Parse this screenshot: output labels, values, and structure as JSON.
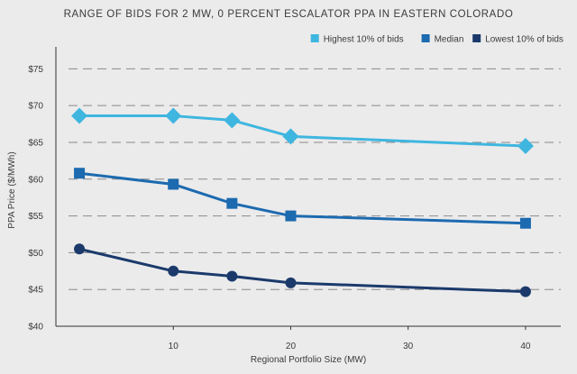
{
  "chart_data": {
    "type": "line",
    "title": "RANGE OF BIDS FOR 2 MW, 0 PERCENT ESCALATOR PPA IN EASTERN COLORADO",
    "xlabel": "Regional Portfolio Size (MW)",
    "ylabel": "PPA Price ($/MWh)",
    "xlim": [
      0,
      43
    ],
    "ylim": [
      40,
      77
    ],
    "x_ticks": [
      10,
      20,
      30,
      40
    ],
    "x_tick_labels": [
      "10",
      "20",
      "30",
      "40"
    ],
    "y_ticks": [
      40,
      45,
      50,
      55,
      60,
      65,
      70,
      75
    ],
    "y_tick_labels": [
      "$40",
      "$45",
      "$50",
      "$55",
      "$60",
      "$65",
      "$70",
      "$75"
    ],
    "grid": "horizontal dashed",
    "legend_position": "top-right",
    "series": [
      {
        "name": "Highest 10% of bids",
        "color": "#3fb6df",
        "marker": "diamond",
        "x": [
          2,
          10,
          15,
          20,
          40
        ],
        "values": [
          68.6,
          68.6,
          68.0,
          65.8,
          64.5
        ]
      },
      {
        "name": "Median",
        "color": "#1c6aaf",
        "marker": "square",
        "x": [
          2,
          10,
          15,
          20,
          40
        ],
        "values": [
          60.8,
          59.3,
          56.7,
          55.0,
          54.0
        ]
      },
      {
        "name": "Lowest 10% of bids",
        "color": "#1b3a6b",
        "marker": "circle",
        "x": [
          2,
          10,
          15,
          20,
          40
        ],
        "values": [
          50.5,
          47.5,
          46.8,
          45.9,
          44.7
        ]
      }
    ]
  }
}
